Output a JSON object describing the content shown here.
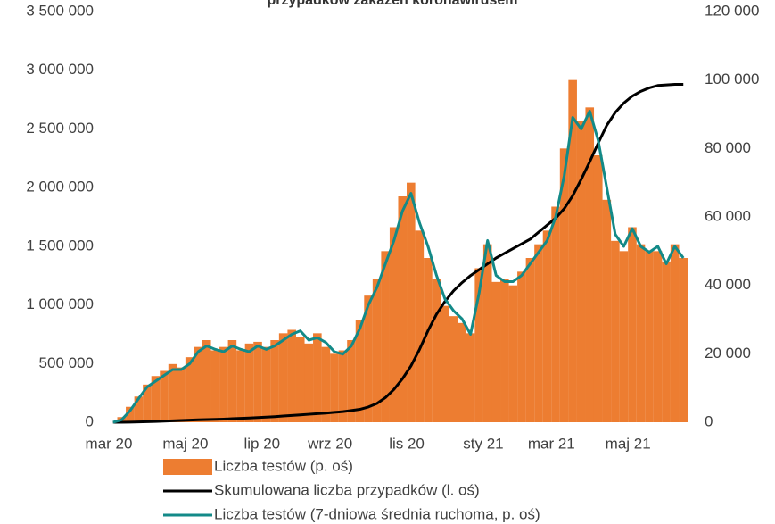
{
  "chart_data": {
    "type": "bar",
    "title": "przypadków zakażeń koronawirusem",
    "categories": [
      "mar 20",
      null,
      null,
      null,
      null,
      null,
      null,
      null,
      null,
      "maj 20",
      null,
      null,
      null,
      null,
      null,
      null,
      null,
      null,
      "lip 20",
      null,
      null,
      null,
      null,
      null,
      null,
      null,
      "wrz 20",
      null,
      null,
      null,
      null,
      null,
      null,
      null,
      null,
      "lis 20",
      null,
      null,
      null,
      null,
      null,
      null,
      null,
      null,
      "sty 21",
      null,
      null,
      null,
      null,
      null,
      null,
      null,
      "mar 21",
      null,
      null,
      null,
      null,
      null,
      null,
      null,
      null,
      "maj 21",
      null,
      null,
      null,
      null,
      null,
      null
    ],
    "series": [
      {
        "name": "Liczba testów (p. oś)",
        "type": "bar",
        "axis": "y2",
        "color": "#ed7d31",
        "values": [
          0,
          1500,
          4500,
          7500,
          11000,
          13500,
          15000,
          17000,
          16000,
          19000,
          22000,
          24000,
          21000,
          22000,
          24000,
          21000,
          23000,
          23500,
          22000,
          24000,
          26000,
          27000,
          25000,
          23000,
          26000,
          22000,
          20000,
          21000,
          24000,
          30000,
          37000,
          42000,
          50000,
          57000,
          66000,
          70000,
          56000,
          48000,
          42000,
          34000,
          31000,
          29000,
          26000,
          45000,
          52000,
          41000,
          42000,
          40000,
          44000,
          48000,
          52000,
          56000,
          63000,
          80000,
          100000,
          88000,
          92000,
          78000,
          65000,
          53000,
          50000,
          57000,
          52000,
          50000,
          50000,
          47000,
          52000,
          48000
        ]
      },
      {
        "name": "Skumulowana liczba przypadków (l. oś)",
        "type": "line",
        "axis": "y",
        "color": "#000000",
        "values": [
          0,
          0,
          1000,
          3000,
          5000,
          7000,
          10000,
          12000,
          15000,
          18000,
          21000,
          23000,
          25000,
          27000,
          30000,
          33000,
          36000,
          40000,
          44000,
          48000,
          53000,
          58000,
          63000,
          68000,
          73000,
          78000,
          85000,
          90000,
          100000,
          110000,
          130000,
          160000,
          210000,
          280000,
          370000,
          480000,
          620000,
          780000,
          920000,
          1030000,
          1120000,
          1190000,
          1250000,
          1300000,
          1350000,
          1400000,
          1440000,
          1480000,
          1520000,
          1560000,
          1620000,
          1680000,
          1740000,
          1820000,
          1930000,
          2070000,
          2220000,
          2380000,
          2530000,
          2640000,
          2720000,
          2780000,
          2820000,
          2850000,
          2870000,
          2875000,
          2880000,
          2880000
        ]
      },
      {
        "name": "Liczba testów (7-dniowa średnia ruchoma, p. oś)",
        "type": "line",
        "axis": "y2",
        "color": "#138a88",
        "values": [
          0,
          700,
          3400,
          6900,
          10300,
          12000,
          13700,
          15400,
          15400,
          17100,
          20600,
          22300,
          21300,
          20600,
          22300,
          21300,
          20600,
          22300,
          21300,
          22300,
          24000,
          25700,
          26700,
          24000,
          24700,
          23300,
          20600,
          19900,
          22300,
          27400,
          34300,
          39400,
          46300,
          53100,
          61700,
          66900,
          58300,
          51400,
          42900,
          36000,
          32600,
          30200,
          25700,
          37700,
          53100,
          42900,
          41100,
          41100,
          42900,
          46300,
          49700,
          53100,
          60000,
          72000,
          89100,
          85700,
          90900,
          82300,
          68600,
          54900,
          51400,
          56600,
          51400,
          49700,
          51400,
          46300,
          51400,
          48000
        ]
      }
    ],
    "ylim": [
      0,
      3500000
    ],
    "yticks": [
      0,
      {
        "value": 500000,
        "label": "500 000"
      },
      {
        "value": 1000000,
        "label": "1 000 000"
      },
      {
        "value": 1500000,
        "label": "1 500 000"
      },
      {
        "value": 2000000,
        "label": "2 000 000"
      },
      {
        "value": 2500000,
        "label": "2 500 000"
      },
      {
        "value": 3000000,
        "label": "3 000 000"
      },
      {
        "value": 3500000,
        "label": "3 500 000"
      }
    ],
    "y2lim": [
      0,
      120000
    ],
    "y2ticks": [
      0,
      {
        "value": 20000,
        "label": "20 000"
      },
      {
        "value": 40000,
        "label": "40 000"
      },
      {
        "value": 60000,
        "label": "60 000"
      },
      {
        "value": 80000,
        "label": "80 000"
      },
      {
        "value": 100000,
        "label": "100 000"
      },
      {
        "value": 120000,
        "label": "120 000"
      }
    ],
    "grid": false
  }
}
